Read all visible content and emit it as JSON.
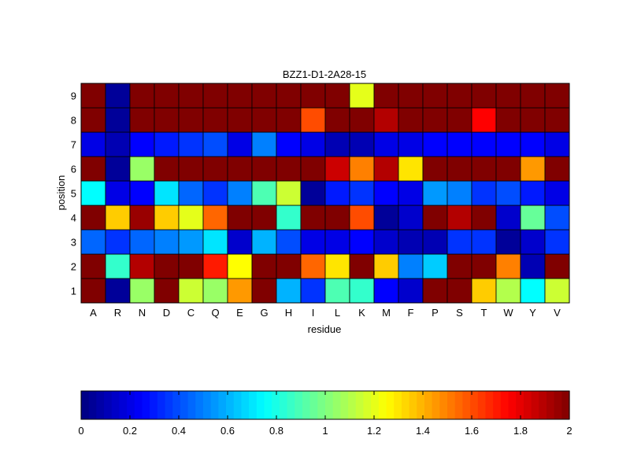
{
  "chart_data": {
    "type": "heatmap",
    "title": "BZZ1-D1-2A28-15",
    "xlabel": "residue",
    "ylabel": "position",
    "x_categories": [
      "A",
      "R",
      "N",
      "D",
      "C",
      "Q",
      "E",
      "G",
      "H",
      "I",
      "L",
      "K",
      "M",
      "F",
      "P",
      "S",
      "T",
      "W",
      "Y",
      "V"
    ],
    "y_categories": [
      "1",
      "2",
      "3",
      "4",
      "5",
      "6",
      "7",
      "8",
      "9"
    ],
    "values": [
      [
        2.0,
        0.05,
        1.05,
        2.0,
        1.15,
        1.05,
        1.45,
        2.0,
        0.6,
        0.35,
        0.9,
        0.85,
        0.25,
        0.15,
        2.0,
        2.0,
        1.35,
        1.1,
        0.75,
        1.15
      ],
      [
        2.0,
        0.85,
        1.9,
        2.0,
        2.0,
        1.7,
        1.25,
        2.0,
        2.0,
        1.55,
        1.3,
        2.0,
        1.35,
        0.5,
        0.65,
        2.0,
        2.0,
        1.5,
        0.1,
        2.0
      ],
      [
        0.45,
        0.35,
        0.45,
        0.5,
        0.55,
        0.7,
        0.15,
        0.6,
        0.4,
        0.2,
        0.2,
        0.25,
        0.15,
        0.1,
        0.1,
        0.35,
        0.35,
        0.05,
        0.15,
        0.35
      ],
      [
        2.0,
        1.35,
        1.95,
        1.35,
        1.2,
        1.55,
        2.0,
        2.0,
        0.85,
        2.0,
        2.0,
        1.6,
        0.05,
        0.15,
        2.0,
        1.9,
        2.0,
        0.15,
        0.95,
        0.4
      ],
      [
        0.75,
        0.2,
        0.25,
        0.7,
        0.45,
        0.35,
        0.5,
        0.9,
        1.15,
        0.05,
        0.3,
        0.35,
        0.25,
        0.2,
        0.55,
        0.5,
        0.35,
        0.4,
        0.3,
        0.2
      ],
      [
        2.0,
        0.05,
        1.05,
        2.0,
        2.0,
        2.0,
        2.0,
        2.0,
        2.0,
        2.0,
        1.85,
        1.5,
        1.9,
        1.3,
        2.0,
        2.0,
        2.0,
        2.0,
        1.45,
        2.0
      ],
      [
        0.2,
        0.1,
        0.25,
        0.3,
        0.35,
        0.4,
        0.2,
        0.5,
        0.25,
        0.2,
        0.1,
        0.1,
        0.2,
        0.2,
        0.25,
        0.25,
        0.25,
        0.25,
        0.25,
        0.2
      ],
      [
        2.0,
        0.05,
        2.0,
        2.0,
        2.0,
        2.0,
        2.0,
        2.0,
        2.0,
        1.6,
        2.0,
        2.0,
        1.9,
        2.0,
        2.0,
        2.0,
        1.75,
        2.0,
        2.0,
        2.0
      ],
      [
        2.0,
        0.05,
        2.0,
        2.0,
        2.0,
        2.0,
        2.0,
        2.0,
        2.0,
        2.0,
        2.0,
        1.2,
        2.0,
        2.0,
        2.0,
        2.0,
        2.0,
        2.0,
        2.0,
        2.0
      ]
    ],
    "clim": [
      0,
      2
    ],
    "colormap": "jet",
    "colorbar": {
      "orientation": "horizontal",
      "ticks": [
        "0",
        "0.2",
        "0.4",
        "0.6",
        "0.8",
        "1",
        "1.2",
        "1.4",
        "1.6",
        "1.8",
        "2"
      ]
    }
  }
}
